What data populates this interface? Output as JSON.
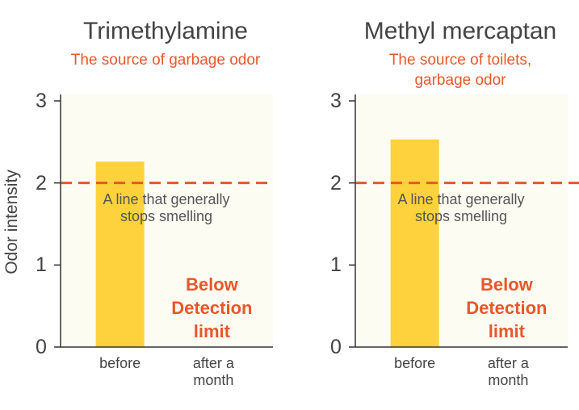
{
  "chart_data": [
    {
      "type": "bar",
      "title": "Trimethylamine",
      "subtitle": "The source of garbage odor",
      "ylabel": "Odor intensity",
      "categories": [
        "before",
        "after a month"
      ],
      "values": [
        2.26,
        null
      ],
      "color": "#fdd23c",
      "ylim": [
        0,
        3
      ],
      "yticks": [
        0,
        1,
        2,
        3
      ],
      "reference_line": {
        "value": 2,
        "label": "A line that generally stops smelling",
        "color": "#e8572a"
      },
      "annotation": "Below Detection limit"
    },
    {
      "type": "bar",
      "title": "Methyl mercaptan",
      "subtitle": "The source of toilets, garbage odor",
      "categories": [
        "before",
        "after a month"
      ],
      "values": [
        2.53,
        null
      ],
      "color": "#fdd23c",
      "ylim": [
        0,
        3
      ],
      "yticks": [
        0,
        1,
        2,
        3
      ],
      "reference_line": {
        "value": 2,
        "label": "A line that generally stops smelling",
        "color": "#e8572a"
      },
      "annotation": "Below Detection limit"
    }
  ]
}
